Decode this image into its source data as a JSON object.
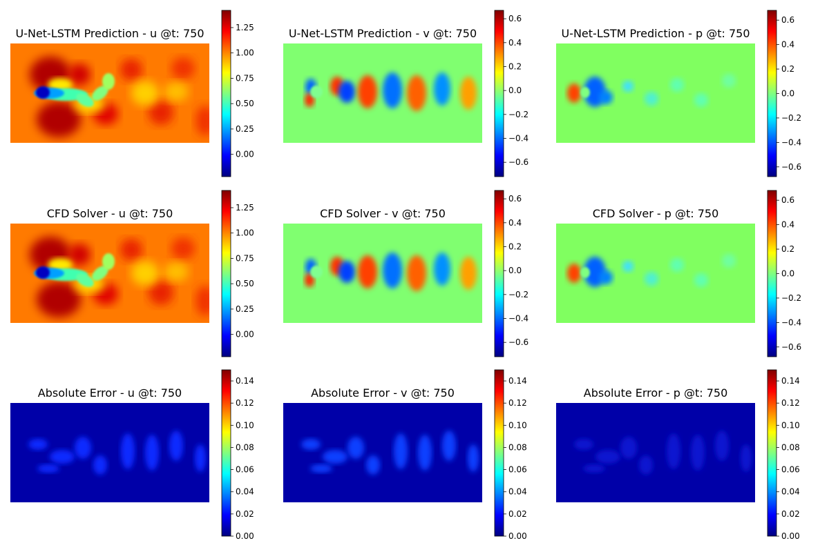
{
  "figure": {
    "background": "#ffffff",
    "colormap": "jet",
    "colormap_stops": [
      "#000080",
      "#0000ff",
      "#0080ff",
      "#00ffff",
      "#80ff80",
      "#ffff00",
      "#ff8000",
      "#ff0000",
      "#800000"
    ]
  },
  "chart_data": [
    {
      "type": "heatmap",
      "row": 0,
      "col": 0,
      "title": "U-Net-LSTM Prediction - u @t: 750",
      "field": "u",
      "source": "prediction",
      "clim": [
        -0.22,
        1.42
      ],
      "ticks": [
        "0.00",
        "0.25",
        "0.50",
        "0.75",
        "1.00",
        "1.25"
      ],
      "tick_values": [
        0,
        0.25,
        0.5,
        0.75,
        1.0,
        1.25
      ]
    },
    {
      "type": "heatmap",
      "row": 0,
      "col": 1,
      "title": "U-Net-LSTM Prediction - v @t: 750",
      "field": "v",
      "source": "prediction",
      "clim": [
        -0.72,
        0.67
      ],
      "ticks": [
        "−0.6",
        "−0.4",
        "−0.2",
        "0.0",
        "0.2",
        "0.4",
        "0.6"
      ],
      "tick_values": [
        -0.6,
        -0.4,
        -0.2,
        0,
        0.2,
        0.4,
        0.6
      ]
    },
    {
      "type": "heatmap",
      "row": 0,
      "col": 2,
      "title": "U-Net-LSTM Prediction - p @t: 750",
      "field": "p",
      "source": "prediction",
      "clim": [
        -0.68,
        0.68
      ],
      "ticks": [
        "−0.6",
        "−0.4",
        "−0.2",
        "0.0",
        "0.2",
        "0.4",
        "0.6"
      ],
      "tick_values": [
        -0.6,
        -0.4,
        -0.2,
        0,
        0.2,
        0.4,
        0.6
      ]
    },
    {
      "type": "heatmap",
      "row": 1,
      "col": 0,
      "title": "CFD Solver - u @t: 750",
      "field": "u",
      "source": "solver",
      "clim": [
        -0.22,
        1.42
      ],
      "ticks": [
        "0.00",
        "0.25",
        "0.50",
        "0.75",
        "1.00",
        "1.25"
      ],
      "tick_values": [
        0,
        0.25,
        0.5,
        0.75,
        1.0,
        1.25
      ]
    },
    {
      "type": "heatmap",
      "row": 1,
      "col": 1,
      "title": "CFD Solver - v @t: 750",
      "field": "v",
      "source": "solver",
      "clim": [
        -0.72,
        0.67
      ],
      "ticks": [
        "−0.6",
        "−0.4",
        "−0.2",
        "0.0",
        "0.2",
        "0.4",
        "0.6"
      ],
      "tick_values": [
        -0.6,
        -0.4,
        -0.2,
        0,
        0.2,
        0.4,
        0.6
      ]
    },
    {
      "type": "heatmap",
      "row": 1,
      "col": 2,
      "title": "CFD Solver - p @t: 750",
      "field": "p",
      "source": "solver",
      "clim": [
        -0.68,
        0.68
      ],
      "ticks": [
        "−0.6",
        "−0.4",
        "−0.2",
        "0.0",
        "0.2",
        "0.4",
        "0.6"
      ],
      "tick_values": [
        -0.6,
        -0.4,
        -0.2,
        0,
        0.2,
        0.4,
        0.6
      ]
    },
    {
      "type": "heatmap",
      "row": 2,
      "col": 0,
      "title": "Absolute Error - u @t: 750",
      "field": "u",
      "source": "error",
      "clim": [
        0,
        0.15
      ],
      "ticks": [
        "0.00",
        "0.02",
        "0.04",
        "0.06",
        "0.08",
        "0.10",
        "0.12",
        "0.14"
      ],
      "tick_values": [
        0,
        0.02,
        0.04,
        0.06,
        0.08,
        0.1,
        0.12,
        0.14
      ]
    },
    {
      "type": "heatmap",
      "row": 2,
      "col": 1,
      "title": "Absolute Error - v @t: 750",
      "field": "v",
      "source": "error",
      "clim": [
        0,
        0.15
      ],
      "ticks": [
        "0.00",
        "0.02",
        "0.04",
        "0.06",
        "0.08",
        "0.10",
        "0.12",
        "0.14"
      ],
      "tick_values": [
        0,
        0.02,
        0.04,
        0.06,
        0.08,
        0.1,
        0.12,
        0.14
      ]
    },
    {
      "type": "heatmap",
      "row": 2,
      "col": 2,
      "title": "Absolute Error - p @t: 750",
      "field": "p",
      "source": "error",
      "clim": [
        0,
        0.15
      ],
      "ticks": [
        "0.00",
        "0.02",
        "0.04",
        "0.06",
        "0.08",
        "0.10",
        "0.12",
        "0.14"
      ],
      "tick_values": [
        0,
        0.02,
        0.04,
        0.06,
        0.08,
        0.1,
        0.12,
        0.14
      ]
    }
  ]
}
